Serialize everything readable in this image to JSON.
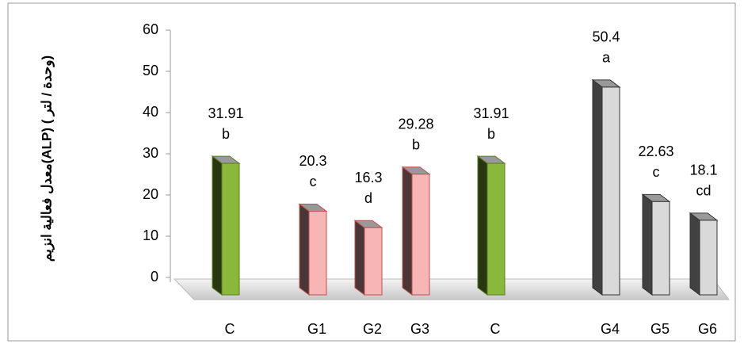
{
  "chart_data": {
    "type": "bar3d",
    "y_label": "معدل فعالية انزيم(ALP) ( وحدة / لتر)",
    "categories": [
      "C",
      "G1",
      "G2",
      "G3",
      "C",
      "G4",
      "G5",
      "G6"
    ],
    "values": [
      31.91,
      20.3,
      16.3,
      29.28,
      31.91,
      50.4,
      22.63,
      18.1
    ],
    "letters": [
      "b",
      "c",
      "d",
      "b",
      "b",
      "a",
      "c",
      "cd"
    ],
    "colors": [
      "#8ab83a",
      "#f7b5b5",
      "#f7b5b5",
      "#f7b5b5",
      "#8ab83a",
      "#d9d9d9",
      "#d9d9d9",
      "#d9d9d9"
    ],
    "ylim": [
      0,
      60
    ],
    "yticks": [
      0,
      10,
      20,
      30,
      40,
      50,
      60
    ]
  }
}
